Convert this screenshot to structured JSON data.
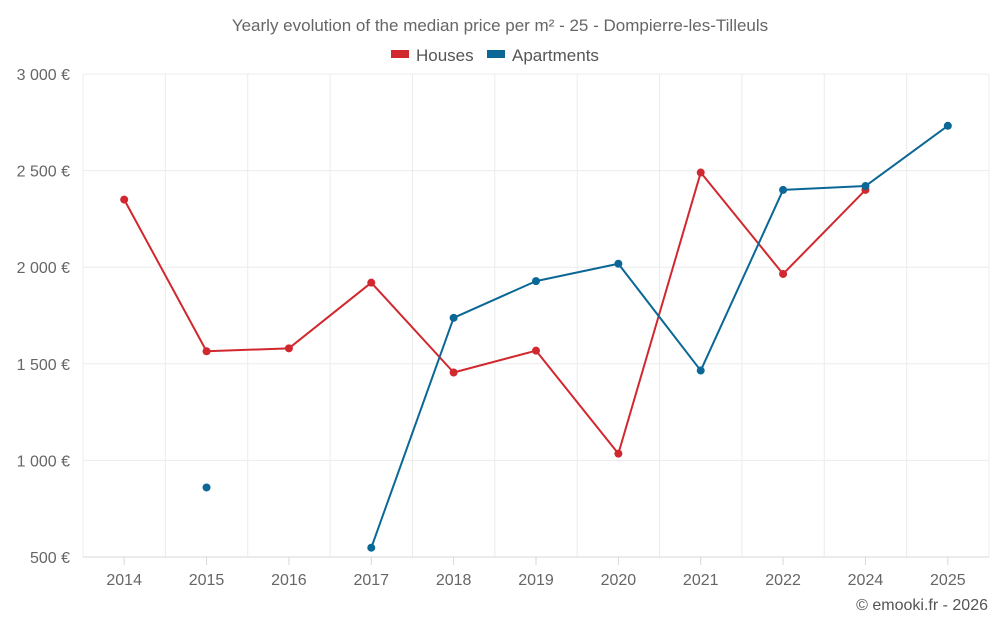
{
  "chart_data": {
    "type": "line",
    "title": "Yearly evolution of the median price per m² - 25 - Dompierre-les-Tilleuls",
    "categories": [
      "2014",
      "2015",
      "2016",
      "2017",
      "2018",
      "2019",
      "2020",
      "2021",
      "2022",
      "2024",
      "2025"
    ],
    "series": [
      {
        "name": "Houses",
        "color": "#d0282e",
        "values": [
          2350,
          1565,
          1580,
          1920,
          1455,
          1568,
          1035,
          2490,
          1965,
          2400,
          null
        ]
      },
      {
        "name": "Apartments",
        "color": "#0a6796",
        "values": [
          null,
          860,
          null,
          548,
          1738,
          1928,
          2018,
          1465,
          2400,
          2420,
          2732
        ]
      }
    ],
    "ylim": [
      500,
      3000
    ],
    "yticks": [
      500,
      1000,
      1500,
      2000,
      2500,
      3000
    ],
    "ytick_labels": [
      "500 €",
      "1 000 €",
      "1 500 €",
      "2 000 €",
      "2 500 €",
      "3 000 €"
    ],
    "xlabel": "",
    "ylabel": "",
    "grid": true,
    "legend_position": "top-center"
  },
  "credit": "© emooki.fr - 2026"
}
